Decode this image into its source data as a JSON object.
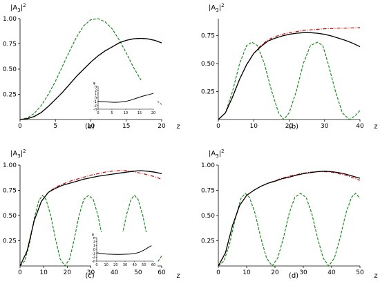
{
  "chart_data": [
    {
      "type": "line",
      "panel_label": "(a)",
      "ylabel_base": "|A",
      "ylabel_sub": "3",
      "ylabel_end": "|",
      "ylabel_sup": "2",
      "xlabel": "z",
      "xlim": [
        0,
        20
      ],
      "ylim": [
        0,
        1.0
      ],
      "xticks": [
        0,
        5,
        10,
        15,
        20
      ],
      "yticks": [
        0.25,
        0.5,
        0.75,
        1.0
      ],
      "ytick_labels": [
        "0.25",
        "0.50",
        "0.75",
        "1.00"
      ],
      "series": [
        {
          "color": "#000000",
          "style": "solid",
          "x": [
            0,
            1,
            2,
            3,
            4,
            5,
            6,
            7,
            8,
            9,
            10,
            11,
            12,
            13,
            14,
            15,
            16,
            17,
            18,
            19,
            20
          ],
          "y": [
            0,
            0.008,
            0.03,
            0.07,
            0.13,
            0.2,
            0.27,
            0.35,
            0.43,
            0.5,
            0.57,
            0.63,
            0.68,
            0.72,
            0.76,
            0.785,
            0.8,
            0.805,
            0.8,
            0.785,
            0.76
          ]
        },
        {
          "color": "#d40000",
          "style": "dashdot",
          "x": [
            0,
            1,
            2,
            3,
            4,
            5,
            6,
            7,
            8,
            9,
            10,
            11,
            12,
            13,
            14,
            15,
            16,
            17,
            18,
            19,
            20
          ],
          "y": [
            0,
            0.008,
            0.03,
            0.07,
            0.13,
            0.2,
            0.27,
            0.35,
            0.43,
            0.5,
            0.57,
            0.63,
            0.68,
            0.72,
            0.76,
            0.785,
            0.8,
            0.805,
            0.8,
            0.785,
            0.76
          ]
        },
        {
          "color": "#1a8a1a",
          "style": "dashed",
          "x": [
            0,
            1,
            2,
            3,
            4,
            5,
            6,
            7,
            8,
            9,
            10,
            11,
            12,
            13,
            14,
            15,
            16,
            17,
            18,
            19,
            20
          ],
          "y": [
            0,
            0.015,
            0.06,
            0.14,
            0.25,
            0.38,
            0.53,
            0.68,
            0.82,
            0.93,
            0.99,
            1.0,
            0.97,
            0.9,
            0.79,
            0.66,
            0.52,
            0.4,
            0.29,
            0.2,
            0.15
          ]
        }
      ],
      "inset": {
        "ylabel": "φ",
        "xlim": [
          0,
          20
        ],
        "ylim": [
          -3.14,
          3.14
        ],
        "xticks": [
          0,
          5,
          10,
          15,
          20
        ],
        "yticks": [
          "π",
          "2",
          "1",
          "0",
          "-1",
          "-2",
          "-π"
        ],
        "x": [
          0,
          2,
          4,
          6,
          8,
          10,
          12,
          14,
          16,
          18,
          20
        ],
        "y": [
          -1.0,
          -1.1,
          -1.2,
          -1.25,
          -1.2,
          -1.0,
          -0.6,
          -0.1,
          0.4,
          0.8,
          1.2
        ]
      }
    },
    {
      "type": "line",
      "panel_label": "(b)",
      "ylabel_base": "|A",
      "ylabel_sub": "3",
      "ylabel_end": "|",
      "ylabel_sup": "2",
      "xlabel": "z",
      "xlim": [
        0,
        40
      ],
      "ylim": [
        0,
        0.9
      ],
      "xticks": [
        0,
        10,
        20,
        30,
        40
      ],
      "yticks": [
        0.25,
        0.5,
        0.75
      ],
      "ytick_labels": [
        "0.25",
        "0.50",
        "0.75"
      ],
      "series": [
        {
          "color": "#000000",
          "style": "solid",
          "x": [
            0,
            2,
            4,
            6,
            8,
            10,
            12,
            14,
            16,
            18,
            20,
            22,
            24,
            26,
            28,
            30,
            32,
            34,
            36,
            38,
            40
          ],
          "y": [
            0,
            0.06,
            0.2,
            0.36,
            0.49,
            0.59,
            0.65,
            0.7,
            0.725,
            0.745,
            0.76,
            0.77,
            0.775,
            0.775,
            0.77,
            0.76,
            0.745,
            0.725,
            0.705,
            0.68,
            0.65
          ]
        },
        {
          "color": "#d40000",
          "style": "dashdot",
          "x": [
            0,
            2,
            4,
            6,
            8,
            10,
            12,
            14,
            16,
            18,
            20,
            22,
            24,
            26,
            28,
            30,
            32,
            34,
            36,
            38,
            40
          ],
          "y": [
            0,
            0.06,
            0.2,
            0.36,
            0.49,
            0.59,
            0.66,
            0.71,
            0.74,
            0.76,
            0.775,
            0.785,
            0.795,
            0.8,
            0.805,
            0.81,
            0.812,
            0.815,
            0.815,
            0.818,
            0.82
          ]
        },
        {
          "color": "#1a8a1a",
          "style": "dashed",
          "x": [
            0,
            2,
            4,
            6,
            8,
            9.5,
            11,
            13,
            15,
            17,
            18.5,
            20,
            22,
            24,
            26,
            28,
            29.5,
            31,
            33,
            35,
            37,
            38.5,
            40
          ],
          "y": [
            0,
            0.06,
            0.25,
            0.5,
            0.66,
            0.69,
            0.66,
            0.5,
            0.26,
            0.06,
            0,
            0.06,
            0.25,
            0.5,
            0.66,
            0.69,
            0.66,
            0.5,
            0.26,
            0.06,
            0,
            0.03,
            0.08
          ]
        }
      ]
    },
    {
      "type": "line",
      "panel_label": "(c)",
      "ylabel_base": "|A",
      "ylabel_sub": "3",
      "ylabel_end": "|",
      "ylabel_sup": "2",
      "xlabel": "z",
      "xlim": [
        0,
        60
      ],
      "ylim": [
        0,
        1.0
      ],
      "xticks": [
        0,
        10,
        20,
        30,
        40,
        50,
        60
      ],
      "yticks": [
        0.25,
        0.5,
        0.75,
        1.0
      ],
      "ytick_labels": [
        "0.25",
        "0.50",
        "0.75",
        "1.00"
      ],
      "series": [
        {
          "color": "#000000",
          "style": "solid",
          "x": [
            0,
            3,
            6,
            9,
            12,
            15,
            18,
            21,
            24,
            27,
            30,
            33,
            36,
            39,
            42,
            45,
            48,
            51,
            54,
            57,
            60
          ],
          "y": [
            0,
            0.15,
            0.45,
            0.64,
            0.73,
            0.77,
            0.8,
            0.82,
            0.84,
            0.86,
            0.875,
            0.89,
            0.9,
            0.91,
            0.92,
            0.93,
            0.94,
            0.945,
            0.94,
            0.93,
            0.915
          ]
        },
        {
          "color": "#d40000",
          "style": "dashdot",
          "x": [
            0,
            3,
            6,
            9,
            12,
            15,
            18,
            21,
            24,
            27,
            30,
            33,
            36,
            39,
            42,
            45,
            48,
            51,
            54,
            57,
            60
          ],
          "y": [
            0,
            0.15,
            0.45,
            0.64,
            0.73,
            0.78,
            0.81,
            0.84,
            0.86,
            0.88,
            0.9,
            0.915,
            0.93,
            0.94,
            0.945,
            0.945,
            0.935,
            0.92,
            0.905,
            0.885,
            0.86
          ]
        },
        {
          "color": "#1a8a1a",
          "style": "dashed",
          "x": [
            0,
            2,
            4,
            6,
            8,
            9.5,
            11,
            13,
            15,
            17,
            19,
            21,
            23,
            25,
            27,
            29,
            31,
            33,
            35,
            37,
            39,
            41,
            43,
            45,
            47,
            48.5,
            50,
            52,
            54,
            56,
            58,
            60
          ],
          "y": [
            0,
            0.05,
            0.22,
            0.47,
            0.65,
            0.7,
            0.66,
            0.5,
            0.27,
            0.07,
            0,
            0.07,
            0.27,
            0.5,
            0.66,
            0.7,
            0.66,
            0.5,
            0.27,
            0.07,
            0,
            0.07,
            0.27,
            0.5,
            0.66,
            0.7,
            0.66,
            0.5,
            0.27,
            0.07,
            0.03,
            0.1
          ]
        }
      ],
      "inset": {
        "ylabel": "φ",
        "xlim": [
          0,
          60
        ],
        "ylim": [
          -3.14,
          3.14
        ],
        "xticks": [
          0,
          10,
          20,
          30,
          40,
          50,
          60
        ],
        "yticks": [
          "π",
          "2",
          "1",
          "0",
          "-1",
          "-2",
          "-π"
        ],
        "x": [
          0,
          5,
          10,
          15,
          20,
          25,
          30,
          35,
          40,
          45,
          50,
          55,
          58
        ],
        "y": [
          -0.9,
          -1.1,
          -1.25,
          -1.3,
          -1.35,
          -1.35,
          -1.3,
          -1.25,
          -1.1,
          -0.8,
          -0.2,
          0.6,
          1.0
        ]
      }
    },
    {
      "type": "line",
      "panel_label": "(d)",
      "ylabel_base": "|A",
      "ylabel_sub": "3",
      "ylabel_end": "|",
      "ylabel_sup": "2",
      "xlabel": "z",
      "xlim": [
        0,
        50
      ],
      "ylim": [
        0,
        1.0
      ],
      "xticks": [
        0,
        10,
        20,
        30,
        40,
        50
      ],
      "yticks": [
        0.25,
        0.5,
        0.75,
        1.0
      ],
      "ytick_labels": [
        "0.25",
        "0.50",
        "0.75",
        "1.00"
      ],
      "series": [
        {
          "color": "#000000",
          "style": "solid",
          "x": [
            0,
            2.5,
            5,
            7.5,
            10,
            12.5,
            15,
            17.5,
            20,
            22.5,
            25,
            27.5,
            30,
            32.5,
            35,
            37.5,
            40,
            42.5,
            45,
            47.5,
            50
          ],
          "y": [
            0,
            0.13,
            0.4,
            0.6,
            0.7,
            0.75,
            0.79,
            0.82,
            0.84,
            0.865,
            0.88,
            0.9,
            0.915,
            0.925,
            0.935,
            0.94,
            0.935,
            0.925,
            0.91,
            0.89,
            0.87
          ]
        },
        {
          "color": "#d40000",
          "style": "dashdot",
          "x": [
            0,
            2.5,
            5,
            7.5,
            10,
            12.5,
            15,
            17.5,
            20,
            22.5,
            25,
            27.5,
            30,
            32.5,
            35,
            37.5,
            40,
            42.5,
            45,
            47.5,
            50
          ],
          "y": [
            0,
            0.13,
            0.4,
            0.6,
            0.7,
            0.75,
            0.79,
            0.82,
            0.845,
            0.87,
            0.89,
            0.905,
            0.92,
            0.93,
            0.935,
            0.935,
            0.93,
            0.915,
            0.9,
            0.875,
            0.85
          ]
        },
        {
          "color": "#1a8a1a",
          "style": "dashed",
          "x": [
            0,
            2,
            4,
            6,
            8,
            9.5,
            11,
            13,
            15,
            17,
            19,
            21,
            23,
            25,
            27,
            29,
            31,
            33,
            35,
            37,
            39,
            41,
            43,
            45,
            47,
            48.5,
            50
          ],
          "y": [
            0,
            0.05,
            0.22,
            0.47,
            0.67,
            0.72,
            0.68,
            0.52,
            0.28,
            0.08,
            0,
            0.08,
            0.28,
            0.52,
            0.68,
            0.72,
            0.68,
            0.52,
            0.28,
            0.08,
            0,
            0.08,
            0.28,
            0.52,
            0.68,
            0.72,
            0.67
          ]
        }
      ]
    }
  ]
}
